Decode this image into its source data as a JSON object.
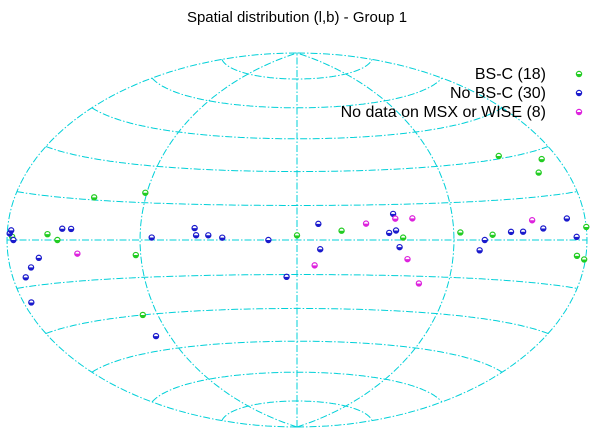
{
  "chart_data": {
    "type": "scatter",
    "projection": "aitoff-hammer (galactic l,b)",
    "title": "Spatial distribution (l,b) - Group 1",
    "xlabel": "",
    "ylabel": "",
    "xlim": [
      -180,
      180
    ],
    "ylim": [
      -90,
      90
    ],
    "grid": true,
    "grid_color": "#00d0d8",
    "legend_position": "top-right",
    "series": [
      {
        "name": "BS-C (18)",
        "color": "#22cc22",
        "points": [
          {
            "l": -176,
            "b": 1
          },
          {
            "l": -150,
            "b": 2
          },
          {
            "l": -143,
            "b": 0
          },
          {
            "l": -123,
            "b": 16
          },
          {
            "l": -91,
            "b": 19
          },
          {
            "l": -93,
            "b": -6
          },
          {
            "l": -100,
            "b": -30
          },
          {
            "l": 0,
            "b": 2
          },
          {
            "l": 25,
            "b": 4
          },
          {
            "l": 60,
            "b": 1
          },
          {
            "l": 94,
            "b": 3
          },
          {
            "l": 114,
            "b": 2
          },
          {
            "l": 158,
            "b": 23
          },
          {
            "l": 167,
            "b": 27
          },
          {
            "l": 173,
            "b": -5
          },
          {
            "l": 179,
            "b": -6
          },
          {
            "l": 180,
            "b": 4
          },
          {
            "l": 137,
            "b": 31
          }
        ]
      },
      {
        "name": "No BS-C (30)",
        "color": "#1a1acc",
        "points": [
          {
            "l": -178,
            "b": 2
          },
          {
            "l": -177,
            "b": 3
          },
          {
            "l": -175,
            "b": 0
          },
          {
            "l": -170,
            "b": -12
          },
          {
            "l": -174,
            "b": -20
          },
          {
            "l": -164,
            "b": -9
          },
          {
            "l": -157,
            "b": -6
          },
          {
            "l": -140,
            "b": 4
          },
          {
            "l": -134,
            "b": 4
          },
          {
            "l": -100,
            "b": -39
          },
          {
            "l": -83,
            "b": 1
          },
          {
            "l": -58,
            "b": 5
          },
          {
            "l": -57,
            "b": 2
          },
          {
            "l": -50,
            "b": 2
          },
          {
            "l": -42,
            "b": 1
          },
          {
            "l": -16,
            "b": 0
          },
          {
            "l": -6,
            "b": -16
          },
          {
            "l": 12,
            "b": 7
          },
          {
            "l": 13,
            "b": -4
          },
          {
            "l": 52,
            "b": 3
          },
          {
            "l": 55,
            "b": 11
          },
          {
            "l": 56,
            "b": 4
          },
          {
            "l": 58,
            "b": -3
          },
          {
            "l": 106,
            "b": -4
          },
          {
            "l": 109,
            "b": 0
          },
          {
            "l": 126,
            "b": 3
          },
          {
            "l": 134,
            "b": 3
          },
          {
            "l": 148,
            "b": 4
          },
          {
            "l": 166,
            "b": 7
          },
          {
            "l": 172,
            "b": 1
          }
        ]
      },
      {
        "name": "No data on MSX or WISE (8)",
        "color": "#dd22dd",
        "points": [
          {
            "l": -130,
            "b": -5
          },
          {
            "l": 10,
            "b": -11
          },
          {
            "l": 39,
            "b": 7
          },
          {
            "l": 56,
            "b": 9
          },
          {
            "l": 63,
            "b": -8
          },
          {
            "l": 66,
            "b": 9
          },
          {
            "l": 72,
            "b": -18
          },
          {
            "l": 141,
            "b": 7
          }
        ]
      }
    ]
  }
}
